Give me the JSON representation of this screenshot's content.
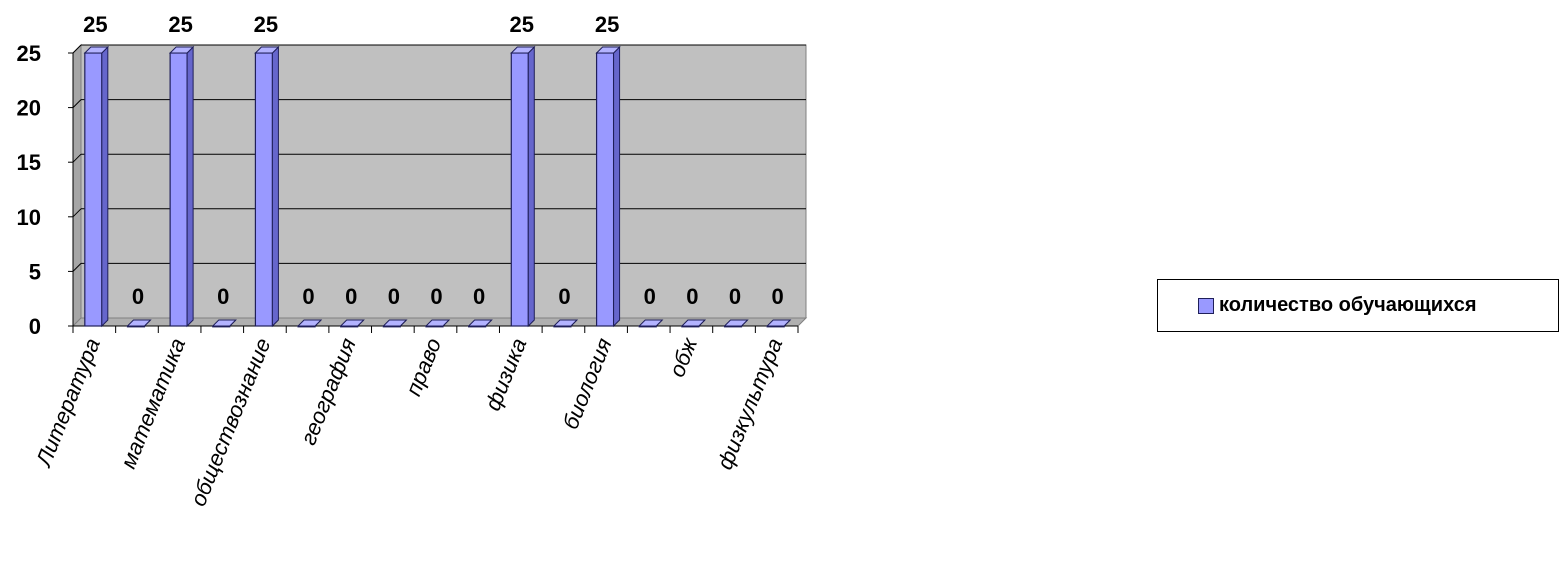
{
  "chart_data": {
    "type": "bar",
    "categories": [
      "Литература",
      "",
      "математика",
      "",
      "обществознание",
      "",
      "география",
      "",
      "право",
      "",
      "физика",
      "",
      "биология",
      "",
      "обж",
      "",
      "физкультура"
    ],
    "series": [
      {
        "name": "количество обучающихся",
        "values": [
          25,
          0,
          25,
          0,
          25,
          0,
          0,
          0,
          0,
          0,
          25,
          0,
          25,
          0,
          0,
          0,
          0
        ]
      }
    ],
    "y_ticks": [
      "0",
      "5",
      "10",
      "15",
      "20",
      "25"
    ],
    "ylim": [
      0,
      25
    ],
    "grid": true,
    "legend_position": "right",
    "colors": {
      "bar": "#9999ff",
      "bar_side": "#6666cc",
      "bar_top": "#b3b3ff",
      "wall": "#c0c0c0"
    }
  }
}
